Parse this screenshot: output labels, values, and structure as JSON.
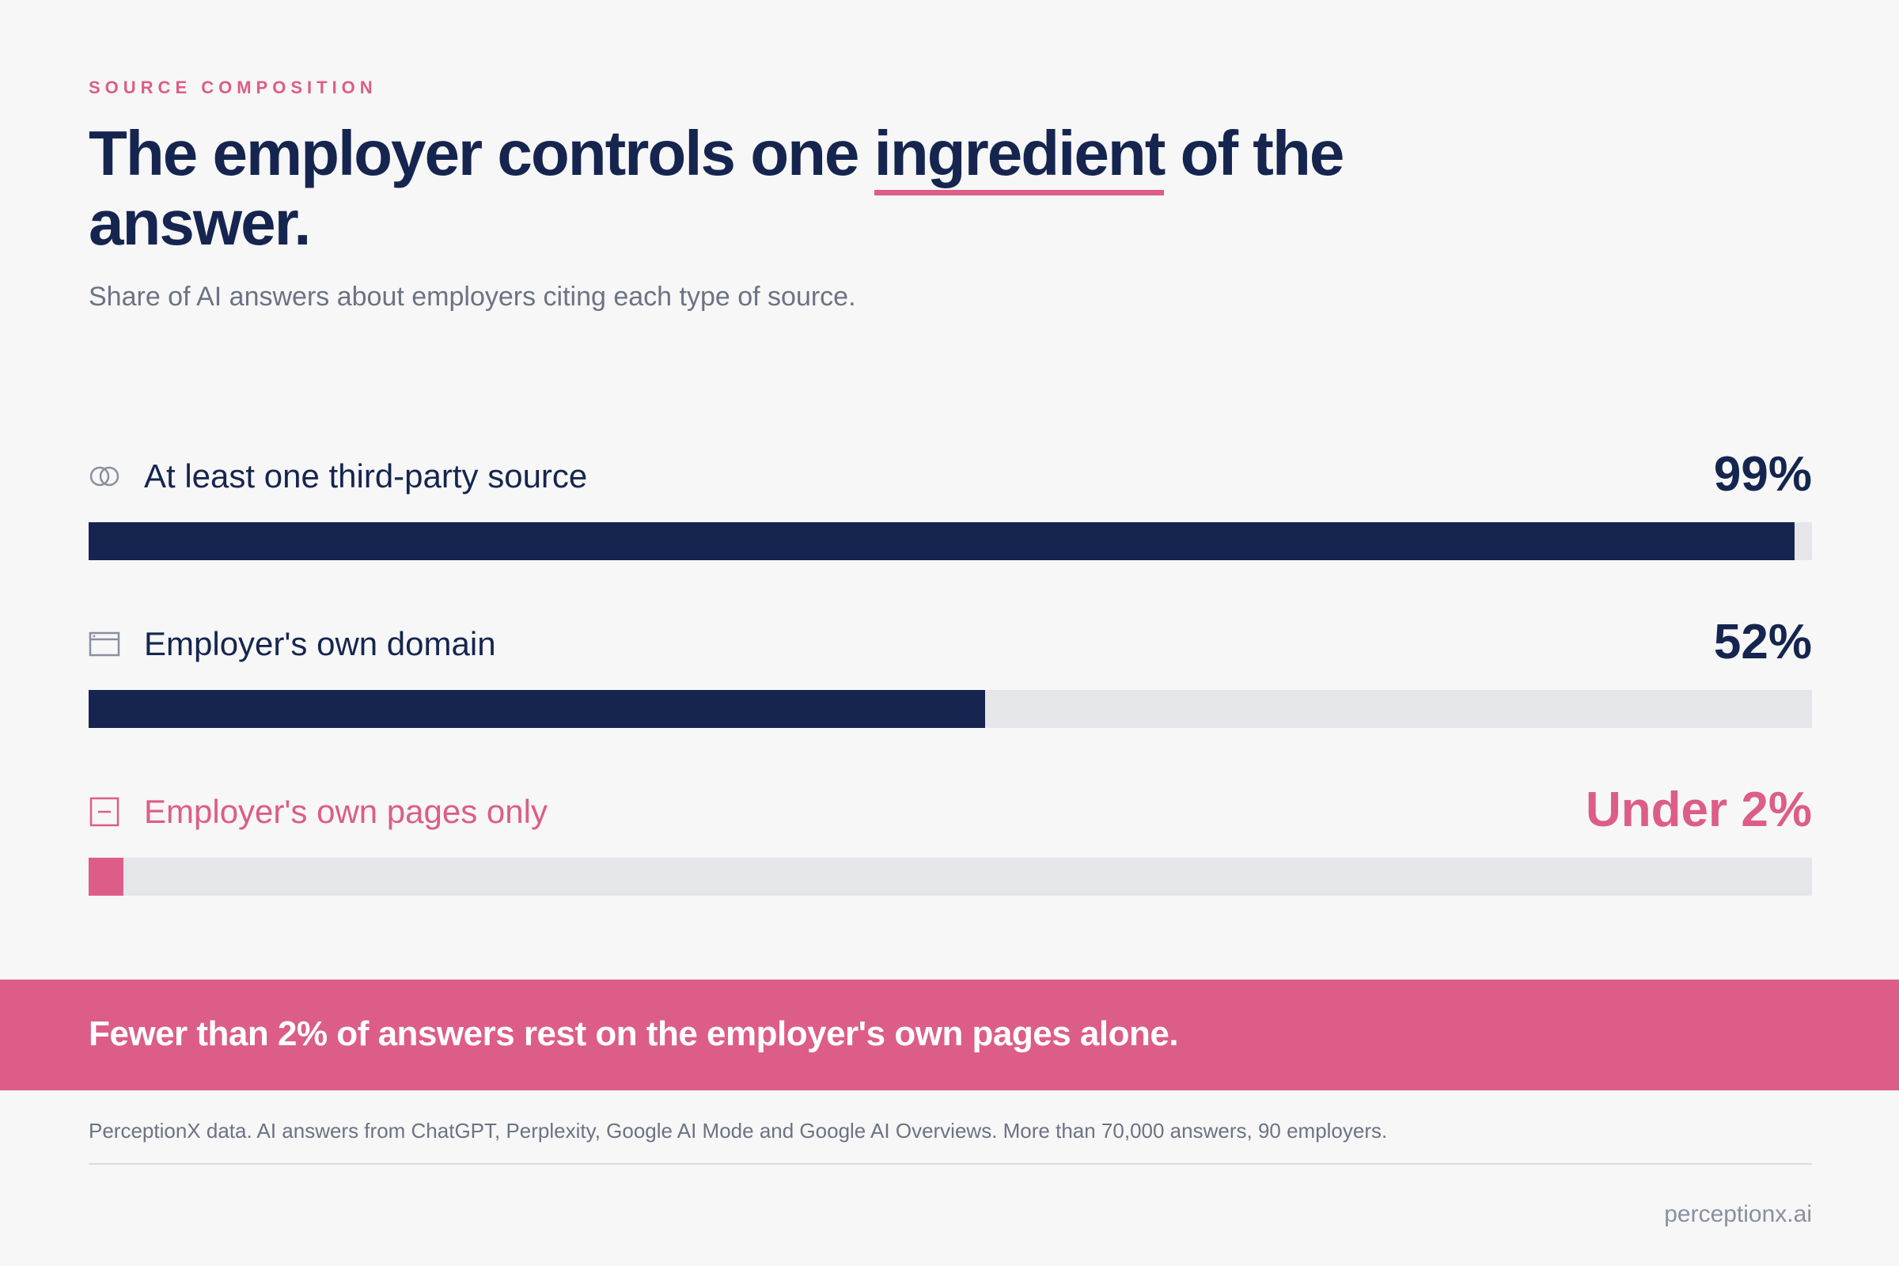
{
  "header": {
    "eyebrow": "SOURCE COMPOSITION",
    "title_before": "The employer controls one ",
    "title_highlight": "ingredient",
    "title_after": " of the answer.",
    "subtitle": "Share of AI answers about employers citing each type of source."
  },
  "chart_data": {
    "type": "bar",
    "orientation": "horizontal",
    "categories": [
      "At least one third-party source",
      "Employer's own domain",
      "Employer's own pages only"
    ],
    "values": [
      99,
      52,
      2
    ],
    "value_labels": [
      "99%",
      "52%",
      "Under 2%"
    ],
    "xlim": [
      0,
      100
    ],
    "icons": [
      "overlapping-circles-icon",
      "browser-window-icon",
      "single-page-icon"
    ],
    "colors": [
      "#16254f",
      "#16254f",
      "#dc5d88"
    ],
    "track_color": "#e4e6ea"
  },
  "banner": {
    "text": "Fewer than 2% of answers rest on the employer's own pages alone.",
    "color": "#dc5d88"
  },
  "footer": {
    "source": "PerceptionX data. AI answers from ChatGPT, Perplexity, Google AI Mode and Google AI Overviews. More than 70,000 answers, 90 employers.",
    "brand": "perceptionx.ai"
  }
}
